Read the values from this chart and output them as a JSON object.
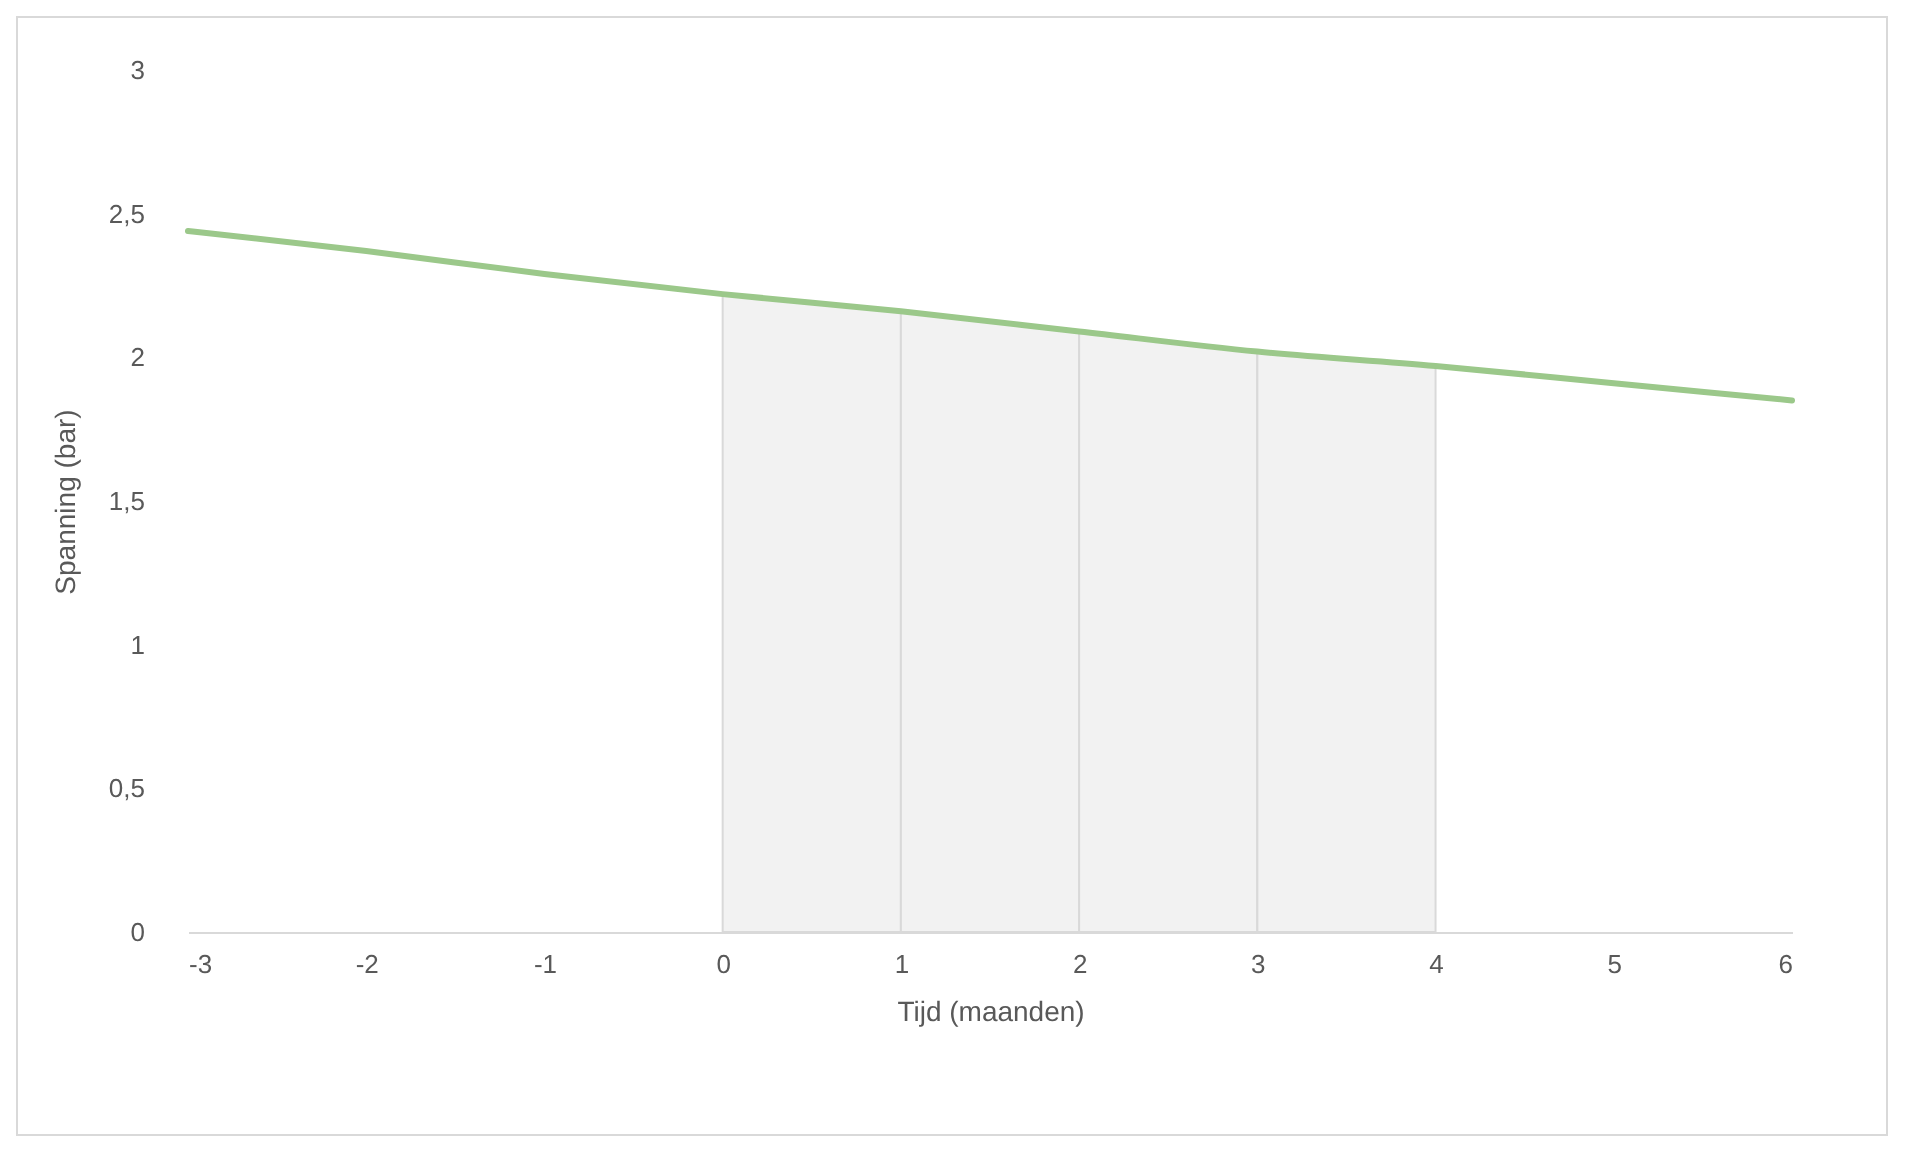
{
  "chart_data": {
    "type": "line",
    "xlabel": "Tijd (maanden)",
    "ylabel": "Spanning (bar)",
    "x": [
      -3,
      -2,
      -1,
      0,
      1,
      2,
      3,
      4,
      5,
      6
    ],
    "series": [
      {
        "color": "#9bc88a",
        "values": [
          2.44,
          2.37,
          2.29,
          2.22,
          2.16,
          2.09,
          2.02,
          1.97,
          1.91,
          1.85
        ]
      },
      {
        "type": "area",
        "color": "#f2f2f2",
        "x": [
          0,
          1
        ],
        "values": [
          2.22,
          2.16
        ]
      },
      {
        "type": "area",
        "color": "#f2f2f2",
        "x": [
          1,
          2
        ],
        "values": [
          2.16,
          2.09
        ]
      },
      {
        "type": "area",
        "color": "#f2f2f2",
        "x": [
          2,
          3
        ],
        "values": [
          2.09,
          2.02
        ]
      },
      {
        "type": "area",
        "color": "#f2f2f2",
        "x": [
          3,
          4
        ],
        "values": [
          2.02,
          1.97
        ]
      }
    ],
    "xlim": [
      -3,
      6
    ],
    "xticks": [
      -3,
      -2,
      -1,
      0,
      1,
      2,
      3,
      4,
      5,
      6
    ],
    "ylim": [
      0,
      3
    ],
    "yticks": [
      0,
      {
        "value": 0.5,
        "label": "0,5"
      },
      1,
      {
        "value": 1.5,
        "label": "1,5"
      },
      2,
      {
        "value": 2.5,
        "label": "2,5"
      },
      3
    ],
    "grid": false
  }
}
